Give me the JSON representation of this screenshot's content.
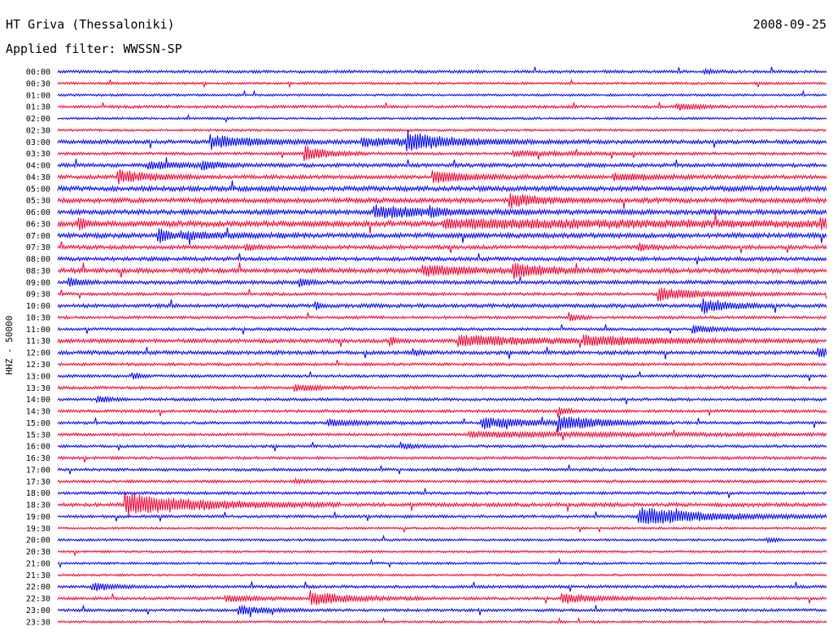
{
  "header": {
    "station": "HT Griva (Thessaloniki)",
    "date": "2008-09-25",
    "filter": "Applied filter: WWSSN-SP"
  },
  "chart_data": {
    "type": "line",
    "title": "HT Griva (Thessaloniki)",
    "ylabel": "HHZ - 50000",
    "trace_colors": [
      "#0000ee",
      "#ee0033"
    ],
    "row_labels": [
      "00:00",
      "00:30",
      "01:00",
      "01:30",
      "02:00",
      "02:30",
      "03:00",
      "03:30",
      "04:00",
      "04:30",
      "05:00",
      "05:30",
      "06:00",
      "06:30",
      "07:00",
      "07:30",
      "08:00",
      "08:30",
      "09:00",
      "09:30",
      "10:00",
      "10:30",
      "11:00",
      "11:30",
      "12:00",
      "12:30",
      "13:00",
      "13:30",
      "14:00",
      "14:30",
      "15:00",
      "15:30",
      "16:00",
      "16:30",
      "17:00",
      "17:30",
      "18:00",
      "18:30",
      "19:00",
      "19:30",
      "20:00",
      "20:30",
      "21:00",
      "21:30",
      "22:00",
      "22:30",
      "23:00",
      "23:30"
    ],
    "x_range_minutes": [
      0,
      30
    ],
    "noise": [
      1.5,
      1.2,
      1.2,
      1.5,
      1.2,
      1.2,
      2,
      1.5,
      2,
      2,
      2.5,
      2.5,
      2.5,
      3,
      2.5,
      2,
      2,
      2.5,
      2,
      1.5,
      2,
      1.5,
      1.5,
      2,
      2,
      1.5,
      1.5,
      1.5,
      1.5,
      1.5,
      1.5,
      1.5,
      1.5,
      1.5,
      1.5,
      1.5,
      1.5,
      2,
      1.5,
      1.2,
      1.2,
      1.2,
      1.2,
      1.2,
      1.5,
      1.5,
      1.5,
      1.2
    ],
    "events": [
      {
        "row": 0,
        "t": 25.2,
        "amp": 3,
        "dur": 0.3
      },
      {
        "row": 3,
        "t": 24.1,
        "amp": 4,
        "dur": 0.8
      },
      {
        "row": 6,
        "t": 5.9,
        "amp": 8,
        "dur": 1.8
      },
      {
        "row": 6,
        "t": 11.8,
        "amp": 5,
        "dur": 3
      },
      {
        "row": 6,
        "t": 13.6,
        "amp": 10,
        "dur": 1.5
      },
      {
        "row": 7,
        "t": 9.6,
        "amp": 10,
        "dur": 0.8
      },
      {
        "row": 7,
        "t": 17.7,
        "amp": 3,
        "dur": 2
      },
      {
        "row": 8,
        "t": 3.5,
        "amp": 4,
        "dur": 1.5
      },
      {
        "row": 8,
        "t": 5.6,
        "amp": 5,
        "dur": 0.6
      },
      {
        "row": 9,
        "t": 2.3,
        "amp": 8,
        "dur": 1.3
      },
      {
        "row": 9,
        "t": 14.6,
        "amp": 7,
        "dur": 1.5
      },
      {
        "row": 9,
        "t": 21.6,
        "amp": 4,
        "dur": 1.5
      },
      {
        "row": 11,
        "t": 17.6,
        "amp": 8,
        "dur": 1.2
      },
      {
        "row": 12,
        "t": 12.3,
        "amp": 7,
        "dur": 2.5
      },
      {
        "row": 12,
        "t": 14.5,
        "amp": 4,
        "dur": 0.4
      },
      {
        "row": 13,
        "t": 15,
        "amp": 4,
        "dur": 14
      },
      {
        "row": 13,
        "t": 0.8,
        "amp": 8,
        "dur": 0.3
      },
      {
        "row": 13,
        "t": 29.7,
        "amp": 6,
        "dur": 0.6
      },
      {
        "row": 14,
        "t": 3.9,
        "amp": 10,
        "dur": 0.4
      },
      {
        "row": 14,
        "t": 4.8,
        "amp": 4,
        "dur": 1.8
      },
      {
        "row": 15,
        "t": 7.3,
        "amp": 4,
        "dur": 0.4
      },
      {
        "row": 15,
        "t": 22.6,
        "amp": 4,
        "dur": 0.6
      },
      {
        "row": 17,
        "t": 14.2,
        "amp": 6,
        "dur": 2
      },
      {
        "row": 17,
        "t": 17.7,
        "amp": 9,
        "dur": 1.2
      },
      {
        "row": 18,
        "t": 0.4,
        "amp": 6,
        "dur": 0.4
      },
      {
        "row": 18,
        "t": 9.4,
        "amp": 6,
        "dur": 0.3
      },
      {
        "row": 19,
        "t": 23.4,
        "amp": 8,
        "dur": 1.8
      },
      {
        "row": 20,
        "t": 25.1,
        "amp": 9,
        "dur": 1
      },
      {
        "row": 20,
        "t": 10,
        "amp": 5,
        "dur": 0.2
      },
      {
        "row": 21,
        "t": 19.9,
        "amp": 6,
        "dur": 0.3
      },
      {
        "row": 22,
        "t": 24.7,
        "amp": 5,
        "dur": 0.8
      },
      {
        "row": 23,
        "t": 15.6,
        "amp": 7,
        "dur": 3
      },
      {
        "row": 23,
        "t": 20.5,
        "amp": 5,
        "dur": 3
      },
      {
        "row": 23,
        "t": 12.9,
        "amp": 6,
        "dur": 0.3
      },
      {
        "row": 24,
        "t": 29.6,
        "amp": 6,
        "dur": 0.8
      },
      {
        "row": 24,
        "t": 13.8,
        "amp": 4,
        "dur": 0.3
      },
      {
        "row": 26,
        "t": 2.9,
        "amp": 5,
        "dur": 0.3
      },
      {
        "row": 27,
        "t": 9.2,
        "amp": 4,
        "dur": 1
      },
      {
        "row": 28,
        "t": 1.5,
        "amp": 5,
        "dur": 0.4
      },
      {
        "row": 29,
        "t": 19.5,
        "amp": 7,
        "dur": 0.3
      },
      {
        "row": 30,
        "t": 16.5,
        "amp": 7,
        "dur": 2
      },
      {
        "row": 30,
        "t": 19.5,
        "amp": 9,
        "dur": 1.5
      },
      {
        "row": 30,
        "t": 10.5,
        "amp": 4,
        "dur": 1.5
      },
      {
        "row": 31,
        "t": 16,
        "amp": 3,
        "dur": 7
      },
      {
        "row": 32,
        "t": 13.4,
        "amp": 3,
        "dur": 0.6
      },
      {
        "row": 35,
        "t": 9.2,
        "amp": 3,
        "dur": 0.4
      },
      {
        "row": 37,
        "t": 2.6,
        "amp": 14,
        "dur": 2.8
      },
      {
        "row": 38,
        "t": 22.6,
        "amp": 11,
        "dur": 2.8
      },
      {
        "row": 40,
        "t": 27.6,
        "amp": 3,
        "dur": 0.4
      },
      {
        "row": 44,
        "t": 1.3,
        "amp": 5,
        "dur": 0.8
      },
      {
        "row": 45,
        "t": 9.8,
        "amp": 9,
        "dur": 1.5
      },
      {
        "row": 45,
        "t": 19.6,
        "amp": 6,
        "dur": 1.4
      },
      {
        "row": 45,
        "t": 6.5,
        "amp": 4,
        "dur": 1.2
      },
      {
        "row": 46,
        "t": 7,
        "amp": 6,
        "dur": 1
      }
    ]
  }
}
